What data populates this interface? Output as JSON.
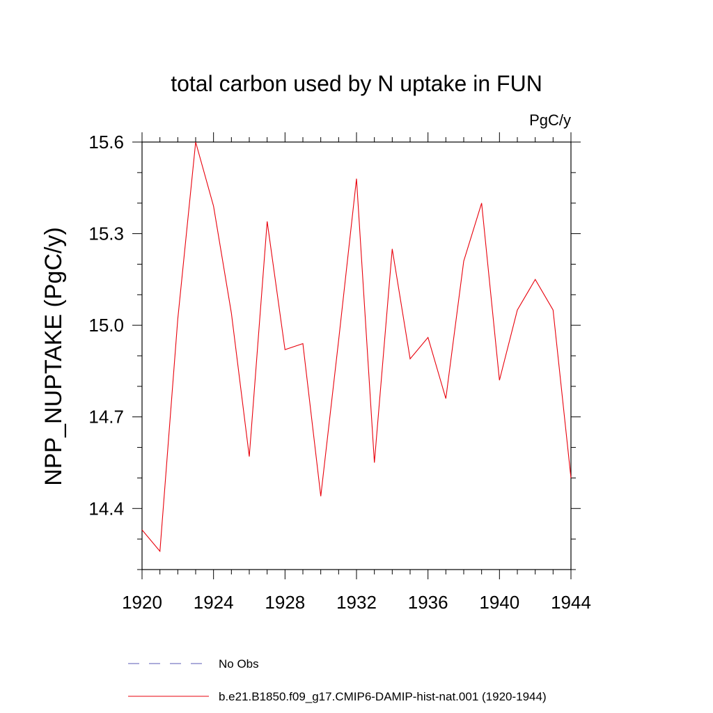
{
  "chart_data": {
    "type": "line",
    "title": "total carbon used by N uptake in FUN",
    "units": "PgC/y",
    "xlabel": "",
    "ylabel": "NPP_NUPTAKE  (PgC/y)",
    "xlim": [
      1920,
      1944
    ],
    "ylim": [
      14.2,
      15.6
    ],
    "xticks": [
      1920,
      1924,
      1928,
      1932,
      1936,
      1940,
      1944
    ],
    "yticks": [
      14.4,
      14.7,
      15.0,
      15.3,
      15.6
    ],
    "ytick_labels": [
      "14.4",
      "14.7",
      "15.0",
      "15.3",
      "15.6"
    ],
    "grid": false,
    "legend_position": "bottom",
    "series": [
      {
        "name": "b.e21.B1850.f09_g17.CMIP6-DAMIP-hist-nat.001 (1920-1944)",
        "color": "#e8000b",
        "style": "solid",
        "x": [
          1920,
          1921,
          1922,
          1923,
          1924,
          1925,
          1926,
          1927,
          1928,
          1929,
          1930,
          1931,
          1932,
          1933,
          1934,
          1935,
          1936,
          1937,
          1938,
          1939,
          1940,
          1941,
          1942,
          1943,
          1944
        ],
        "y": [
          14.33,
          14.26,
          15.02,
          15.6,
          15.39,
          15.04,
          14.57,
          15.34,
          14.92,
          14.94,
          14.44,
          14.95,
          15.48,
          14.55,
          15.25,
          14.89,
          14.96,
          14.76,
          15.21,
          15.4,
          14.82,
          15.05,
          15.15,
          15.05,
          14.5
        ]
      }
    ],
    "legend": [
      {
        "label": "No Obs",
        "color": "#5a5ab4",
        "style": "dashed"
      },
      {
        "label": "b.e21.B1850.f09_g17.CMIP6-DAMIP-hist-nat.001 (1920-1944)",
        "color": "#e8000b",
        "style": "solid"
      }
    ]
  }
}
